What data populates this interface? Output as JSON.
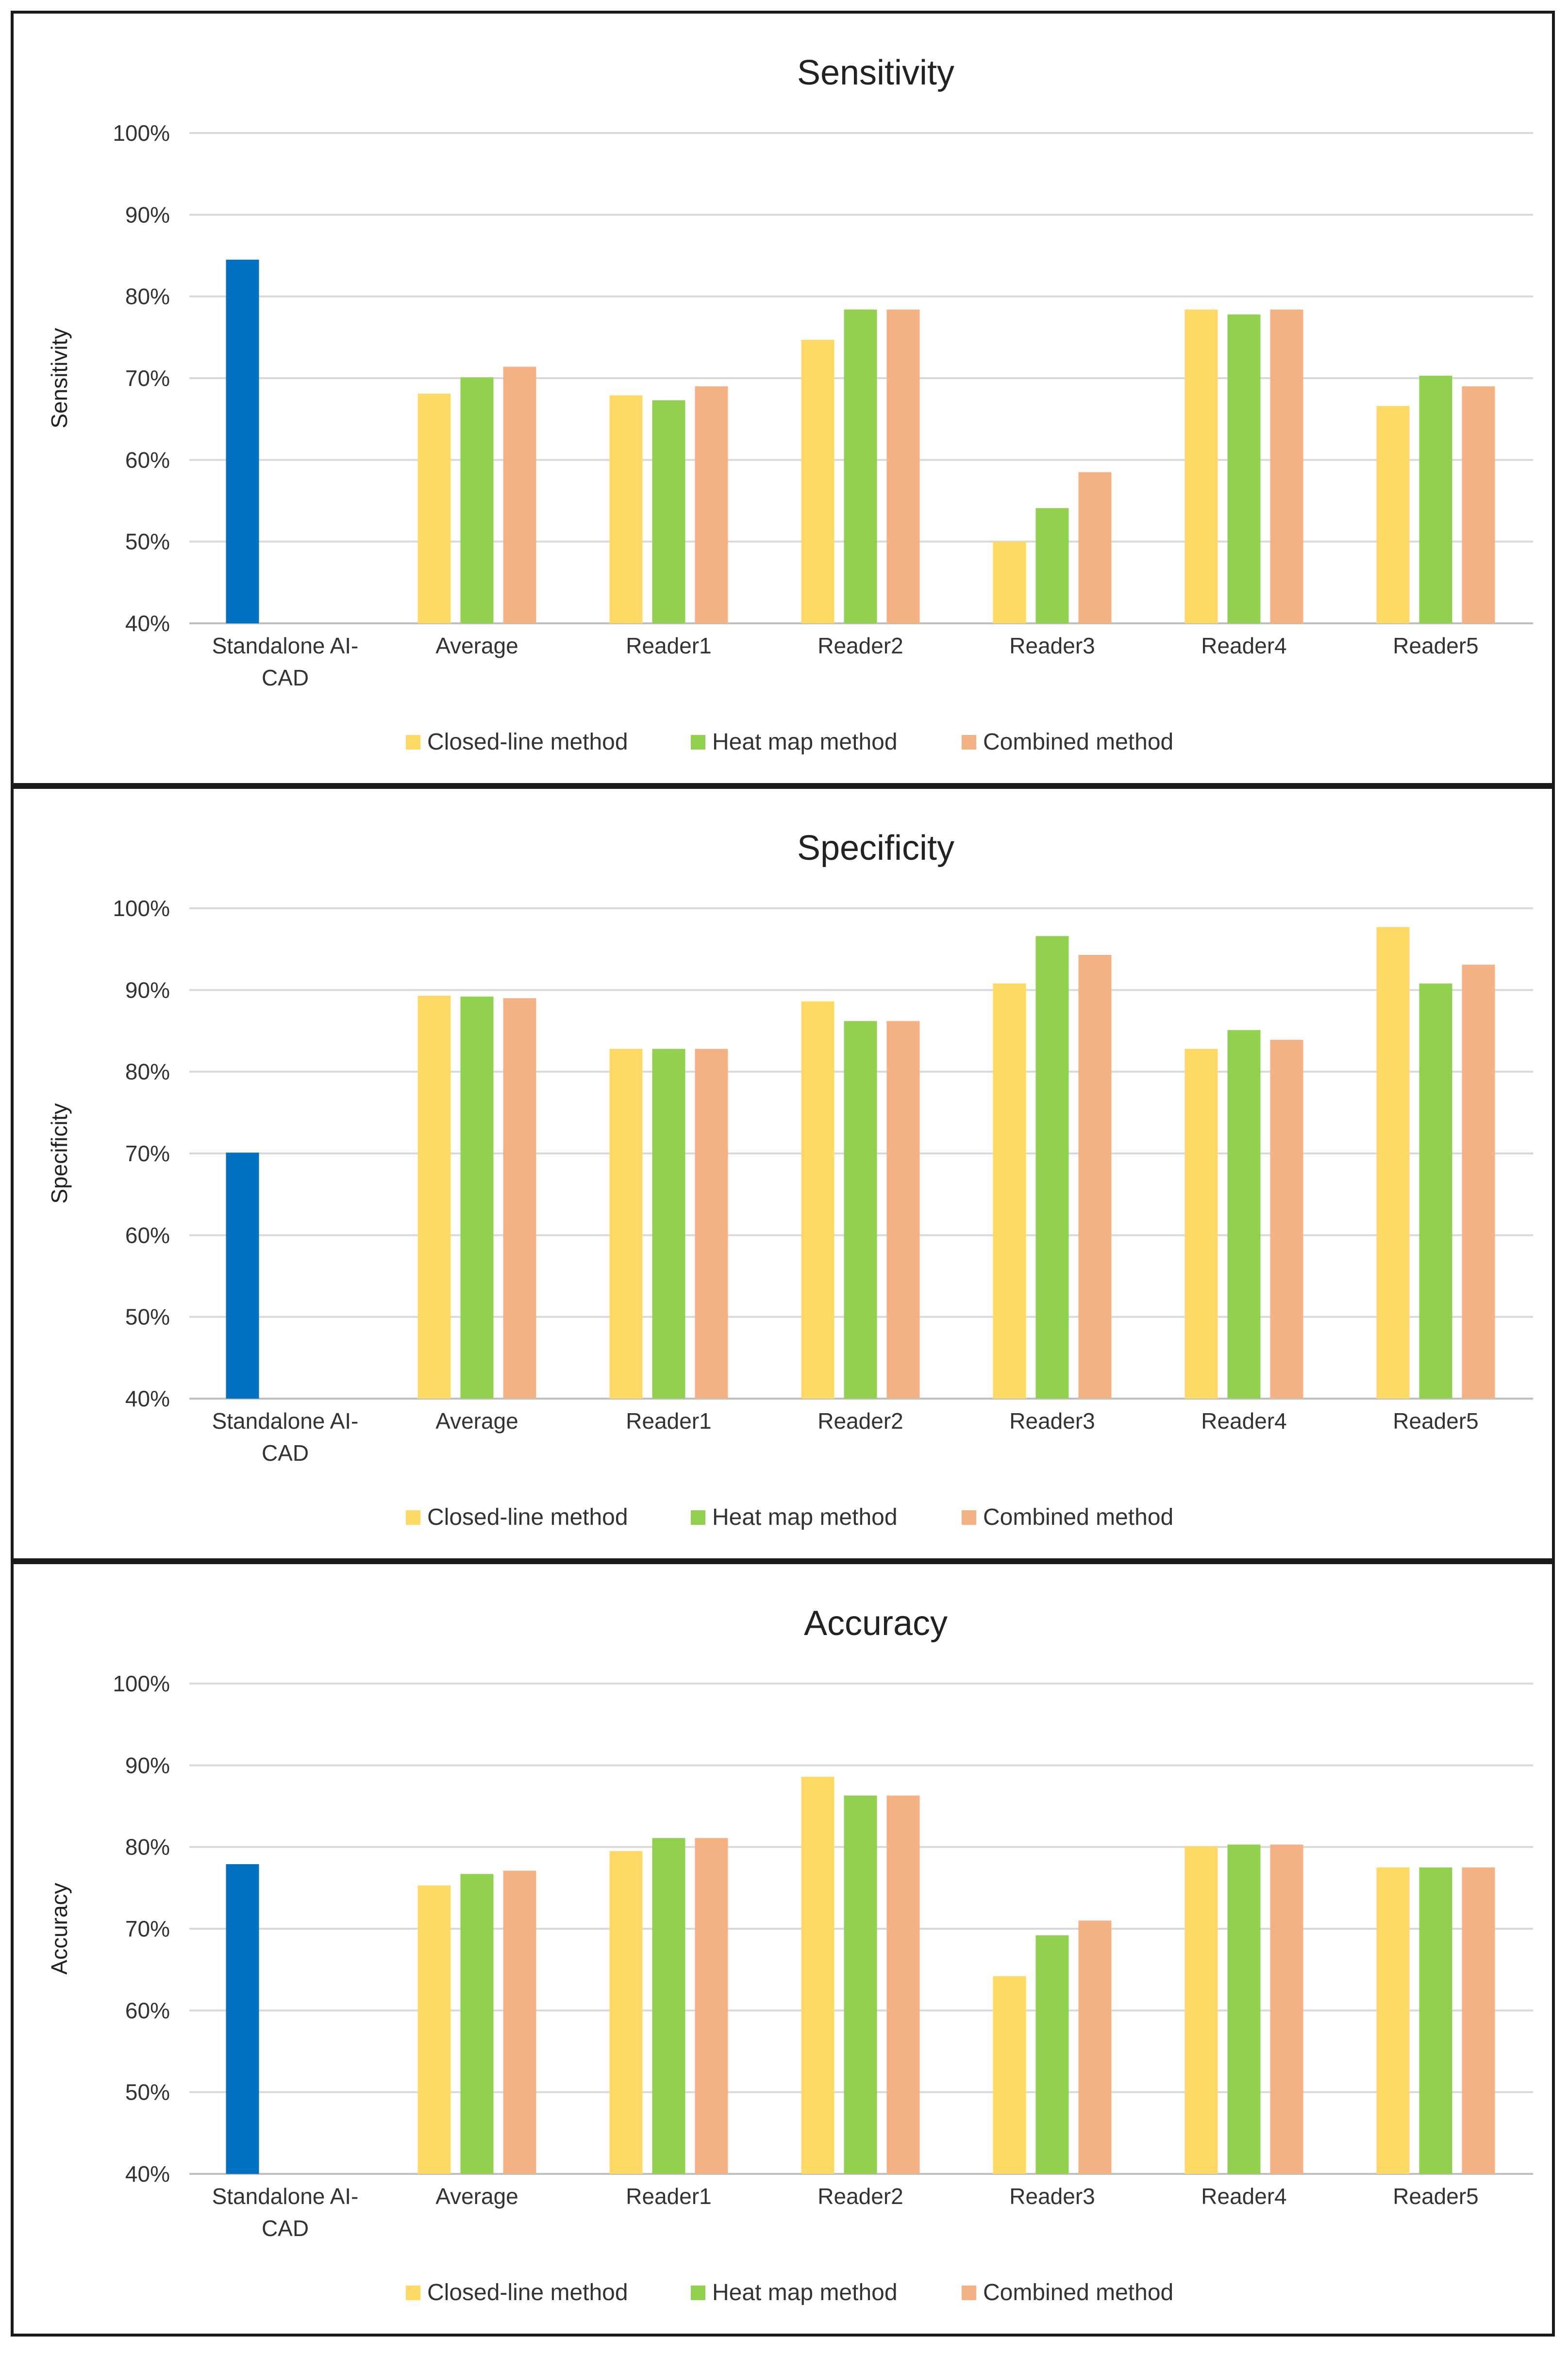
{
  "colors": {
    "standalone": "#0070C0",
    "closed_line": "#FFD966",
    "heat_map": "#92D050",
    "combined": "#F4B183"
  },
  "chart_data": [
    {
      "type": "bar",
      "title": "Sensitivity",
      "xlabel": "",
      "ylabel": "Sensitivity",
      "ylim": [
        40,
        100
      ],
      "yticks": [
        "40%",
        "50%",
        "60%",
        "70%",
        "80%",
        "90%",
        "100%"
      ],
      "categories": [
        [
          "Standalone AI-",
          "CAD"
        ],
        [
          "Average"
        ],
        [
          "Reader1"
        ],
        [
          "Reader2"
        ],
        [
          "Reader3"
        ],
        [
          "Reader4"
        ],
        [
          "Reader5"
        ]
      ],
      "standalone_value": 84.5,
      "series": [
        {
          "name": "Closed-line method",
          "values": [
            null,
            68.1,
            67.9,
            74.7,
            50.0,
            78.4,
            66.6
          ]
        },
        {
          "name": "Heat map method",
          "values": [
            null,
            70.1,
            67.3,
            78.4,
            54.1,
            77.8,
            70.3
          ]
        },
        {
          "name": "Combined method",
          "values": [
            null,
            71.4,
            69.0,
            78.4,
            58.5,
            78.4,
            69.0
          ]
        }
      ],
      "legend": [
        "Closed-line method",
        "Heat map method",
        "Combined method"
      ],
      "legend_position": "bottom",
      "grid": true
    },
    {
      "type": "bar",
      "title": "Specificity",
      "xlabel": "",
      "ylabel": "Specificity",
      "ylim": [
        40,
        100
      ],
      "yticks": [
        "40%",
        "50%",
        "60%",
        "70%",
        "80%",
        "90%",
        "100%"
      ],
      "categories": [
        [
          "Standalone AI-",
          "CAD"
        ],
        [
          "Average"
        ],
        [
          "Reader1"
        ],
        [
          "Reader2"
        ],
        [
          "Reader3"
        ],
        [
          "Reader4"
        ],
        [
          "Reader5"
        ]
      ],
      "standalone_value": 70.1,
      "series": [
        {
          "name": "Closed-line method",
          "values": [
            null,
            89.3,
            82.8,
            88.6,
            90.8,
            82.8,
            97.7
          ]
        },
        {
          "name": "Heat map method",
          "values": [
            null,
            89.2,
            82.8,
            86.2,
            96.6,
            85.1,
            90.8
          ]
        },
        {
          "name": "Combined method",
          "values": [
            null,
            89.0,
            82.8,
            86.2,
            94.3,
            83.9,
            93.1
          ]
        }
      ],
      "legend": [
        "Closed-line method",
        "Heat map method",
        "Combined method"
      ],
      "legend_position": "bottom",
      "grid": true
    },
    {
      "type": "bar",
      "title": "Accuracy",
      "xlabel": "",
      "ylabel": "Accuracy",
      "ylim": [
        40,
        100
      ],
      "yticks": [
        "40%",
        "50%",
        "60%",
        "70%",
        "80%",
        "90%",
        "100%"
      ],
      "categories": [
        [
          "Standalone AI-",
          "CAD"
        ],
        [
          "Average"
        ],
        [
          "Reader1"
        ],
        [
          "Reader2"
        ],
        [
          "Reader3"
        ],
        [
          "Reader4"
        ],
        [
          "Reader5"
        ]
      ],
      "standalone_value": 77.9,
      "series": [
        {
          "name": "Closed-line method",
          "values": [
            null,
            75.3,
            79.5,
            88.6,
            64.2,
            80.1,
            77.5
          ]
        },
        {
          "name": "Heat map method",
          "values": [
            null,
            76.7,
            81.1,
            86.3,
            69.2,
            80.3,
            77.5
          ]
        },
        {
          "name": "Combined method",
          "values": [
            null,
            77.1,
            81.1,
            86.3,
            71.0,
            80.3,
            77.5
          ]
        }
      ],
      "legend": [
        "Closed-line method",
        "Heat map method",
        "Combined method"
      ],
      "legend_position": "bottom",
      "grid": true
    }
  ]
}
